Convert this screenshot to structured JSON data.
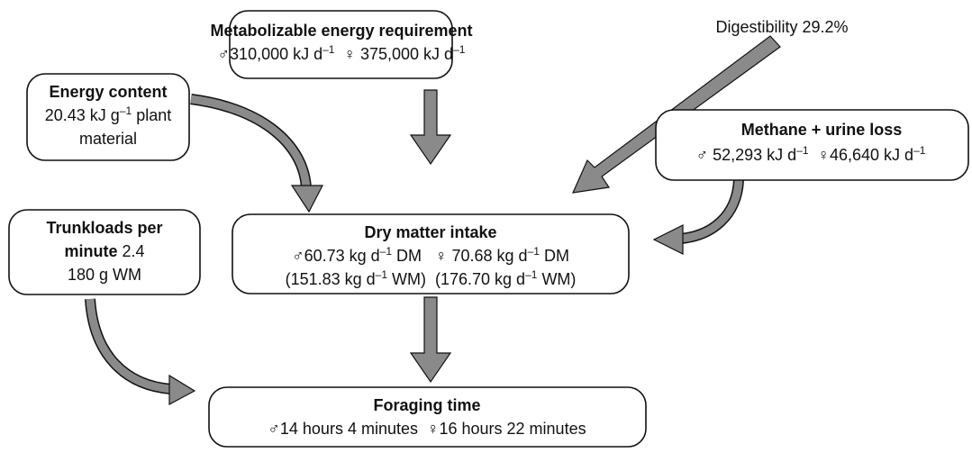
{
  "nodes": [
    {
      "lines": [
        [
          "Metabolizable energy requirement"
        ],
        [
          "♂310,000 kJ d",
          "–1",
          "  ♀ 375,000 kJ d",
          "–1"
        ]
      ]
    },
    {
      "lines": [
        [
          "Energy content"
        ],
        [
          "20.43 kJ g",
          "–1",
          " plant"
        ],
        [
          "material"
        ]
      ]
    },
    {
      "lines": [
        [
          "Digestibility 29.2%"
        ]
      ]
    },
    {
      "lines": [
        [
          "Methane + urine loss"
        ],
        [
          "♂ 52,293 kJ d",
          "–1",
          "  ♀46,640 kJ d",
          "–1"
        ]
      ]
    },
    {
      "lines": [
        [
          "Dry matter intake"
        ],
        [
          "♂60.73 kg d",
          "–1",
          " DM   ♀ 70.68 kg d",
          "–1",
          " DM"
        ],
        [
          "(151.83 kg d",
          "–1",
          " WM)  (176.70 kg d",
          "–1",
          " WM)"
        ]
      ]
    },
    {
      "lines": [
        [
          "Trunkloads per"
        ],
        [
          "minute",
          " 2.4"
        ],
        [
          "180 g WM"
        ]
      ]
    },
    {
      "lines": [
        [
          "Foraging time"
        ],
        [
          "♂14 hours 4 minutes  ♀16 hours 22 minutes"
        ]
      ]
    }
  ]
}
